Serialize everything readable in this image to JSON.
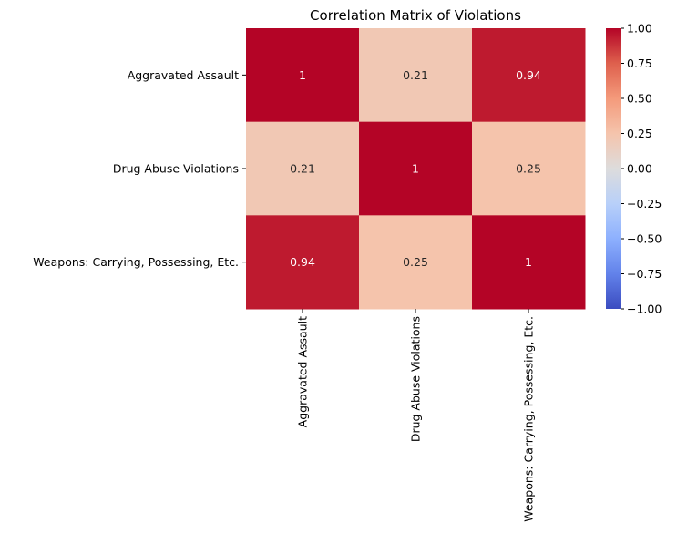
{
  "chart_data": {
    "type": "heatmap",
    "title": "Correlation Matrix of Violations",
    "xlabel": "",
    "ylabel": "",
    "row_labels": [
      "Aggravated Assault",
      "Drug Abuse Violations",
      "Weapons: Carrying, Possessing, Etc."
    ],
    "col_labels": [
      "Aggravated Assault",
      "Drug Abuse Violations",
      "Weapons: Carrying, Possessing, Etc."
    ],
    "values": [
      [
        1,
        0.21,
        0.94
      ],
      [
        0.21,
        1,
        0.25
      ],
      [
        0.94,
        0.25,
        1
      ]
    ],
    "annotations": [
      [
        "1",
        "0.21",
        "0.94"
      ],
      [
        "0.21",
        "1",
        "0.25"
      ],
      [
        "0.94",
        "0.25",
        "1"
      ]
    ],
    "colormap": "coolwarm",
    "vmin": -1,
    "vmax": 1,
    "colorbar_ticks": [
      1.0,
      0.75,
      0.5,
      0.25,
      0.0,
      -0.25,
      -0.5,
      -0.75,
      -1.0
    ],
    "colorbar_tick_labels": [
      "1.00",
      "0.75",
      "0.50",
      "0.25",
      "0.00",
      "−0.25",
      "−0.50",
      "−0.75",
      "−1.00"
    ],
    "grid": false,
    "colorbar_position": "right"
  }
}
